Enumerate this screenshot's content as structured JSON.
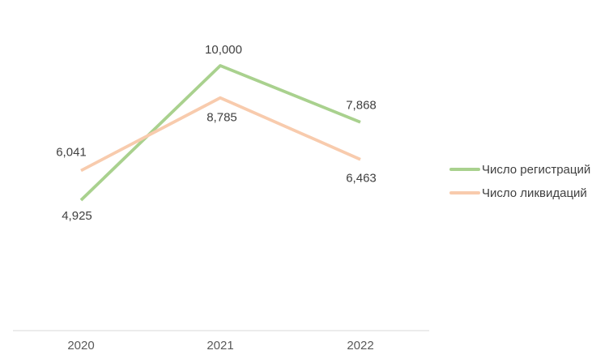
{
  "figure": {
    "background": "#ffffff"
  },
  "chart_data": {
    "type": "line",
    "categories": [
      "2020",
      "2021",
      "2022"
    ],
    "series": [
      {
        "name": "Число регистраций",
        "values": [
          4925,
          10000,
          7868
        ],
        "labels": [
          "4,925",
          "10,000",
          "7,868"
        ],
        "color": "#a9d18e",
        "label_offsets": [
          [
            -5,
            24
          ],
          [
            4,
            -15
          ],
          [
            1,
            -16
          ]
        ]
      },
      {
        "name": "Число ликвидаций",
        "values": [
          6041,
          8785,
          6463
        ],
        "labels": [
          "6,041",
          "8,785",
          "6,463"
        ],
        "color": "#f8cbad",
        "label_offsets": [
          [
            -12,
            -18
          ],
          [
            2,
            29
          ],
          [
            1,
            28
          ]
        ]
      }
    ],
    "title": "",
    "xlabel": "",
    "ylabel": "",
    "ylim": [
      0,
      12000
    ],
    "grid": false,
    "legend_position": "right",
    "data_labels_shown": true,
    "axis_line_color": "#d9d9d9",
    "data_label_color": "#404040",
    "tick_label_color": "#595959"
  }
}
